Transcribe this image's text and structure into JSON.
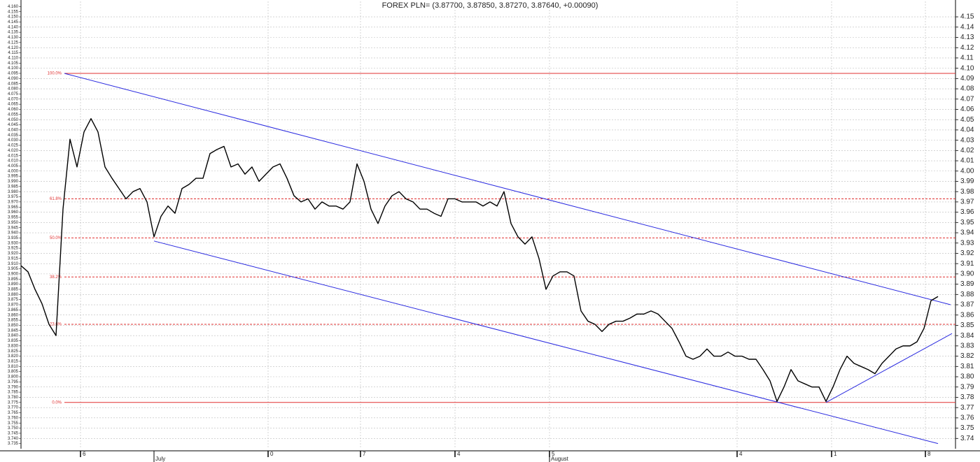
{
  "chart_data": {
    "type": "line",
    "title": "FOREX PLN= (3.87700, 3.87850, 3.87270, 3.87640, +0.00090)",
    "series": [
      {
        "name": "PLN=",
        "color": "#000000",
        "values": [
          3.908,
          3.902,
          3.885,
          3.871,
          3.851,
          3.84,
          3.963,
          4.031,
          4.004,
          4.038,
          4.051,
          4.038,
          4.004,
          3.993,
          3.983,
          3.973,
          3.98,
          3.983,
          3.97,
          3.936,
          3.956,
          3.966,
          3.959,
          3.983,
          3.987,
          3.993,
          3.993,
          4.017,
          4.021,
          4.024,
          4.004,
          4.007,
          3.997,
          4.004,
          3.99,
          3.997,
          4.004,
          4.007,
          3.993,
          3.976,
          3.97,
          3.973,
          3.963,
          3.97,
          3.966,
          3.966,
          3.963,
          3.97,
          4.007,
          3.99,
          3.963,
          3.949,
          3.966,
          3.976,
          3.98,
          3.973,
          3.97,
          3.963,
          3.963,
          3.959,
          3.956,
          3.973,
          3.973,
          3.97,
          3.97,
          3.97,
          3.966,
          3.97,
          3.966,
          3.98,
          3.949,
          3.936,
          3.929,
          3.936,
          3.915,
          3.885,
          3.898,
          3.902,
          3.902,
          3.898,
          3.864,
          3.854,
          3.851,
          3.844,
          3.851,
          3.854,
          3.854,
          3.857,
          3.861,
          3.861,
          3.864,
          3.861,
          3.854,
          3.847,
          3.834,
          3.82,
          3.817,
          3.82,
          3.827,
          3.82,
          3.82,
          3.824,
          3.82,
          3.82,
          3.817,
          3.817,
          3.807,
          3.796,
          3.776,
          3.79,
          3.807,
          3.796,
          3.793,
          3.79,
          3.79,
          3.776,
          3.79,
          3.807,
          3.82,
          3.813,
          3.81,
          3.807,
          3.803,
          3.813,
          3.82,
          3.827,
          3.83,
          3.83,
          3.834,
          3.847,
          3.874,
          3.878
        ]
      }
    ],
    "fib_levels": [
      {
        "label": "100.0%",
        "value": 4.095,
        "solid": true
      },
      {
        "label": "61.8%",
        "value": 3.973,
        "solid": false
      },
      {
        "label": "50.0%",
        "value": 3.935,
        "solid": false
      },
      {
        "label": "38.2%",
        "value": 3.897,
        "solid": false
      },
      {
        "label": "23.6%",
        "value": 3.851,
        "solid": false
      },
      {
        "label": "0.0%",
        "value": 3.775,
        "solid": true
      }
    ],
    "fib_color": "#e03030",
    "trend_lines": [
      {
        "x": [
          6.2,
          132.8
        ],
        "y": [
          4.095,
          3.87
        ]
      },
      {
        "x": [
          19,
          131
        ],
        "y": [
          3.932,
          3.735
        ]
      },
      {
        "x": [
          115,
          133
        ],
        "y": [
          3.775,
          3.842
        ]
      }
    ],
    "trend_color": "#2a2ae0",
    "xlim": [
      0,
      133.5
    ],
    "xticks": [
      {
        "value": 8.5,
        "label": "6"
      },
      {
        "value": 35.3,
        "label": "0"
      },
      {
        "value": 48.5,
        "label": "7"
      },
      {
        "value": 62,
        "label": "4"
      },
      {
        "value": 75.5,
        "label": "5"
      },
      {
        "value": 102.3,
        "label": "4"
      },
      {
        "value": 115.8,
        "label": "1"
      },
      {
        "value": 129.2,
        "label": "8"
      }
    ],
    "month_ticks": [
      {
        "value": 19,
        "label": "July"
      },
      {
        "value": 75.5,
        "label": "August"
      }
    ],
    "ylim": [
      3.73,
      4.165
    ],
    "yticks": [
      3.735,
      {
        "value": 3.74,
        "label": "3.740"
      },
      3.745,
      {
        "value": 3.75,
        "label": "3.750"
      },
      3.755,
      {
        "value": 3.76,
        "label": "3.760"
      },
      3.765,
      {
        "value": 3.77,
        "label": "3.770"
      },
      3.775,
      {
        "value": 3.78,
        "label": "3.780"
      },
      3.785,
      {
        "value": 3.79,
        "label": "3.790"
      },
      3.795,
      {
        "value": 3.8,
        "label": "3.800"
      },
      3.805,
      {
        "value": 3.81,
        "label": "3.810"
      },
      3.815,
      {
        "value": 3.82,
        "label": "3.820"
      },
      3.825,
      {
        "value": 3.83,
        "label": "3.830"
      },
      3.835,
      {
        "value": 3.84,
        "label": "3.840"
      },
      3.845,
      {
        "value": 3.85,
        "label": "3.850"
      },
      3.855,
      {
        "value": 3.86,
        "label": "3.860"
      },
      3.865,
      {
        "value": 3.87,
        "label": "3.870"
      },
      3.875,
      {
        "value": 3.88,
        "label": "3.880"
      },
      3.885,
      {
        "value": 3.89,
        "label": "3.890"
      },
      3.895,
      {
        "value": 3.9,
        "label": "3.900"
      },
      3.905,
      {
        "value": 3.91,
        "label": "3.910"
      },
      3.915,
      {
        "value": 3.92,
        "label": "3.920"
      },
      3.925,
      {
        "value": 3.93,
        "label": "3.930"
      },
      3.935,
      {
        "value": 3.94,
        "label": "3.940"
      },
      3.945,
      {
        "value": 3.95,
        "label": "3.950"
      },
      3.955,
      {
        "value": 3.96,
        "label": "3.960"
      },
      3.965,
      {
        "value": 3.97,
        "label": "3.970"
      },
      3.975,
      {
        "value": 3.98,
        "label": "3.980"
      },
      3.985,
      {
        "value": 3.99,
        "label": "3.990"
      },
      3.995,
      {
        "value": 4,
        "label": "4.000"
      },
      4.005,
      {
        "value": 4.01,
        "label": "4.010"
      },
      4.015,
      {
        "value": 4.02,
        "label": "4.020"
      },
      4.025,
      {
        "value": 4.03,
        "label": "4.030"
      },
      4.035,
      {
        "value": 4.04,
        "label": "4.040"
      },
      4.045,
      {
        "value": 4.05,
        "label": "4.050"
      },
      4.055,
      {
        "value": 4.06,
        "label": "4.060"
      },
      4.065,
      {
        "value": 4.07,
        "label": "4.070"
      },
      4.075,
      {
        "value": 4.08,
        "label": "4.080"
      },
      4.085,
      {
        "value": 4.09,
        "label": "4.090"
      },
      4.095,
      {
        "value": 4.1,
        "label": "4.100"
      },
      4.105,
      {
        "value": 4.11,
        "label": "4.110"
      },
      4.115,
      {
        "value": 4.12,
        "label": "4.120"
      },
      4.125,
      {
        "value": 4.13,
        "label": "4.130"
      },
      4.135,
      {
        "value": 4.14,
        "label": "4.140"
      },
      4.145,
      {
        "value": 4.15,
        "label": "4.150"
      },
      4.155,
      {
        "value": 4.16,
        "label": "4.160"
      }
    ],
    "y2ticks": [
      3.74,
      3.75,
      3.76,
      3.77,
      3.78,
      3.79,
      {
        "value": 3.8,
        "label": "3.80"
      },
      3.81,
      3.82,
      3.83,
      3.84,
      3.85,
      3.86,
      3.87,
      3.88,
      3.89,
      {
        "value": 3.9,
        "label": "3.90"
      },
      3.91,
      3.92,
      3.93,
      3.94,
      3.95,
      3.96,
      3.97,
      3.98,
      3.99,
      {
        "value": 4,
        "label": "4.00"
      },
      4.01,
      4.02,
      4.03,
      4.04,
      4.05,
      4.06,
      4.07,
      4.08,
      4.09,
      {
        "value": 4.1,
        "label": "4.10"
      },
      4.11,
      4.12,
      4.13,
      4.14,
      4.15
    ],
    "grid": true
  }
}
